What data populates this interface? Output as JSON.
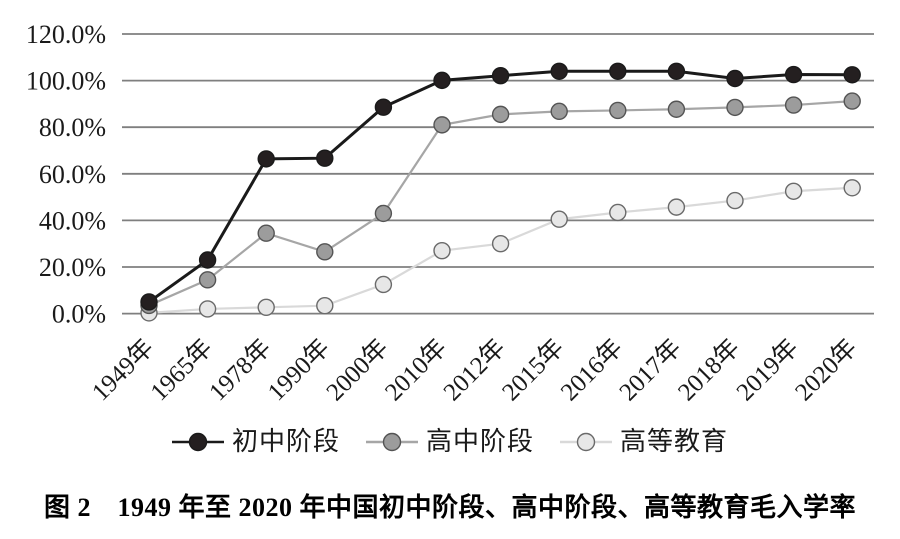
{
  "figure": {
    "caption": "图 2　1949 年至 2020 年中国初中阶段、高中阶段、高等教育毛入学率"
  },
  "chart_data": {
    "type": "line",
    "title": "",
    "xlabel": "",
    "ylabel": "",
    "categories": [
      "1949年",
      "1965年",
      "1978年",
      "1990年",
      "2000年",
      "2010年",
      "2012年",
      "2015年",
      "2016年",
      "2017年",
      "2018年",
      "2019年",
      "2020年"
    ],
    "series": [
      {
        "name": "初中阶段",
        "values": [
          5.0,
          23.0,
          66.4,
          66.7,
          88.6,
          100.1,
          102.1,
          104.0,
          104.0,
          104.0,
          100.9,
          102.6,
          102.5
        ],
        "line_color": "#1a1a1a",
        "marker_fill": "#241f20",
        "marker_stroke": "#1a1a1a"
      },
      {
        "name": "高中阶段",
        "values": [
          3.5,
          14.5,
          34.5,
          26.5,
          43.0,
          81.0,
          85.5,
          86.8,
          87.2,
          87.7,
          88.5,
          89.5,
          91.2
        ],
        "line_color": "#a6a6a6",
        "marker_fill": "#9c9c9c",
        "marker_stroke": "#545454"
      },
      {
        "name": "高等教育",
        "values": [
          0.3,
          2.0,
          2.7,
          3.4,
          12.5,
          27.0,
          30.0,
          40.5,
          43.4,
          45.7,
          48.5,
          52.5,
          54.0
        ],
        "line_color": "#d9d9d9",
        "marker_fill": "#e7e7e7",
        "marker_stroke": "#6a6a6a"
      }
    ],
    "y_ticks": [
      {
        "value": 0,
        "label": "0.0%"
      },
      {
        "value": 20,
        "label": "20.0%"
      },
      {
        "value": 40,
        "label": "40.0%"
      },
      {
        "value": 60,
        "label": "60.0%"
      },
      {
        "value": 80,
        "label": "80.0%"
      },
      {
        "value": 100,
        "label": "100.0%"
      },
      {
        "value": 120,
        "label": "120.0%"
      }
    ],
    "ylim": [
      0,
      120
    ],
    "grid": true,
    "grid_color": "#7f7f7f",
    "legend_position": "bottom"
  }
}
